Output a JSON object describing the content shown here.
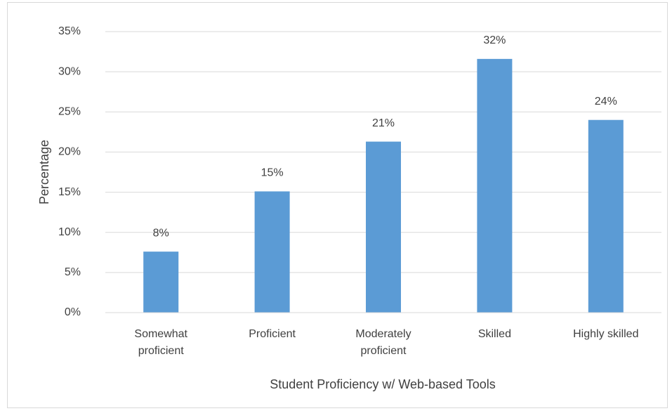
{
  "chart_data": {
    "type": "bar",
    "x_label": "Student Proficiency w/ Web-based Tools",
    "y_label": "Percentage",
    "categories": [
      "Somewhat proficient",
      "Proficient",
      "Moderately proficient",
      "Skilled",
      "Highly skilled"
    ],
    "values": [
      7.6,
      15.1,
      21.3,
      31.6,
      24.0
    ],
    "value_labels": [
      "8%",
      "15%",
      "21%",
      "32%",
      "24%"
    ],
    "color": "#5b9bd5",
    "ylim": [
      0,
      35
    ],
    "yticks": [
      {
        "value": 0,
        "label": "0%"
      },
      {
        "value": 5,
        "label": "5%"
      },
      {
        "value": 10,
        "label": "10%"
      },
      {
        "value": 15,
        "label": "15%"
      },
      {
        "value": 20,
        "label": "20%"
      },
      {
        "value": 25,
        "label": "25%"
      },
      {
        "value": 30,
        "label": "30%"
      },
      {
        "value": 35,
        "label": "35%"
      }
    ],
    "grid": true
  }
}
